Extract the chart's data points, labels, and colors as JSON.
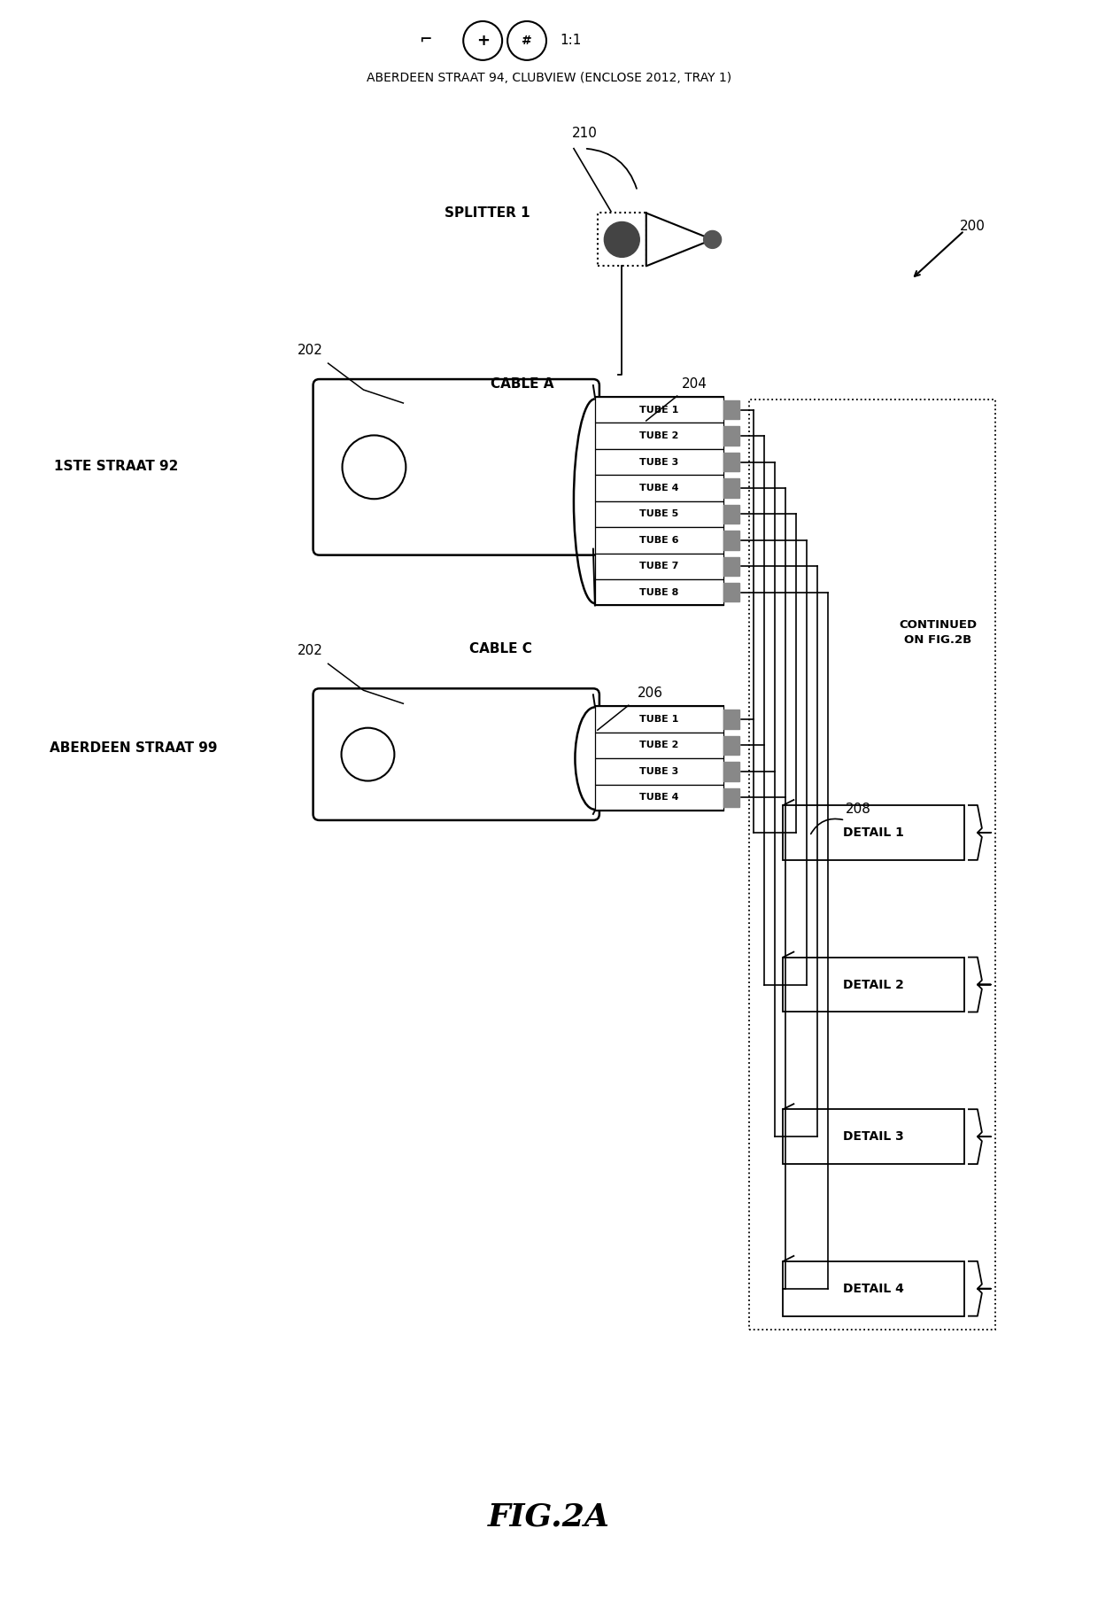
{
  "title_main": "ABERDEEN STRAAT 94, CLUBVIEW (ENCLOSE 2012, TRAY 1)",
  "fig_label": "FIG.2A",
  "ref_200": "200",
  "ref_202_top": "202",
  "ref_202_bot": "202",
  "ref_204": "204",
  "ref_206": "206",
  "ref_208": "208",
  "ref_210": "210",
  "label_splitter": "SPLITTER 1",
  "label_cable_a": "CABLE A",
  "label_cable_c": "CABLE C",
  "label_1ste": "1STE STRAAT 92",
  "label_aberdeen": "ABERDEEN STRAAT 99",
  "label_continued": "CONTINUED\nON FIG.2B",
  "tubes_a": [
    "TUBE 1",
    "TUBE 2",
    "TUBE 3",
    "TUBE 4",
    "TUBE 5",
    "TUBE 6",
    "TUBE 7",
    "TUBE 8"
  ],
  "tubes_c": [
    "TUBE 1",
    "TUBE 2",
    "TUBE 3",
    "TUBE 4"
  ],
  "details": [
    "DETAIL 1",
    "DETAIL 2",
    "DETAIL 3",
    "DETAIL 4"
  ],
  "bg_color": "#ffffff",
  "line_color": "#000000",
  "text_color": "#000000"
}
